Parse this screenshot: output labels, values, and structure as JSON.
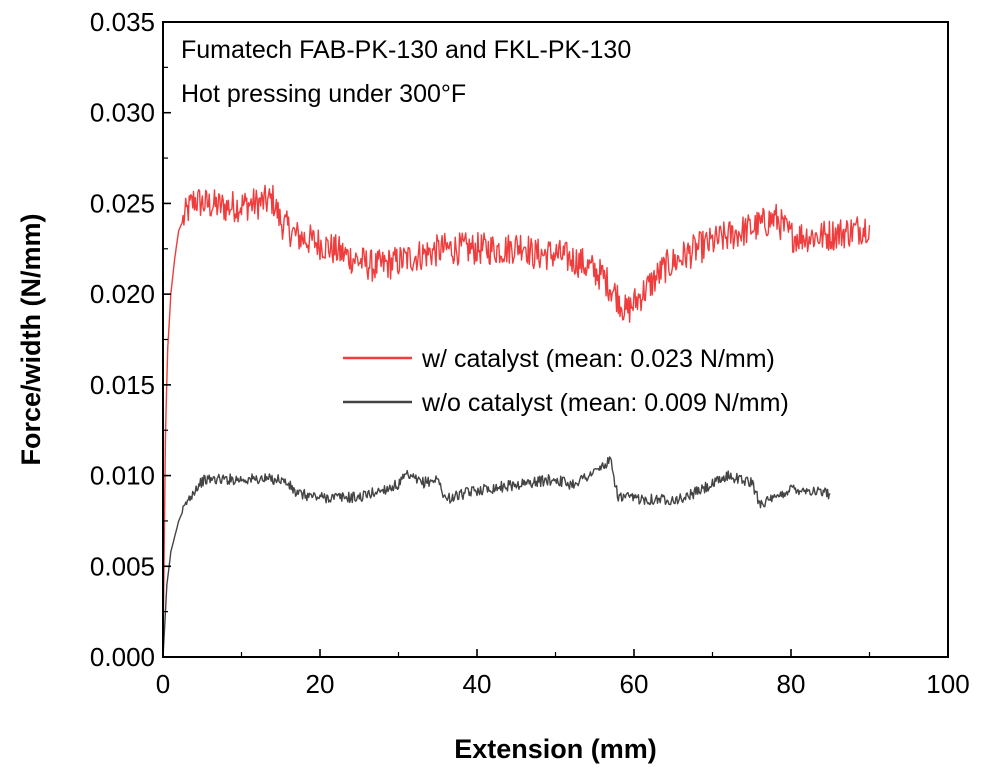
{
  "chart_data": {
    "type": "line",
    "title": "",
    "annotations": [
      "Fumatech FAB-PK-130 and FKL-PK-130",
      "Hot pressing under 300°F"
    ],
    "xlabel": "Extension (mm)",
    "ylabel": "Force/width (N/mm)",
    "xlim": [
      0,
      100
    ],
    "ylim": [
      0,
      0.035
    ],
    "x_ticks": [
      0,
      20,
      40,
      60,
      80,
      100
    ],
    "x_tick_labels": [
      "0",
      "20",
      "40",
      "60",
      "80",
      "100"
    ],
    "y_ticks": [
      0,
      0.005,
      0.01,
      0.015,
      0.02,
      0.025,
      0.03,
      0.035
    ],
    "y_tick_labels": [
      "0.000",
      "0.005",
      "0.010",
      "0.015",
      "0.020",
      "0.025",
      "0.030",
      "0.035"
    ],
    "grid": false,
    "legend_position": "center-right",
    "series": [
      {
        "name": "w/ catalyst (mean: 0.023 N/mm)",
        "color": "#f03c3c",
        "noise": 0.0009,
        "x": [
          0,
          0.3,
          0.6,
          1,
          1.5,
          2,
          3,
          4,
          5,
          8,
          12,
          14,
          15,
          17,
          20,
          24,
          27,
          30,
          33,
          36,
          40,
          44,
          46,
          47,
          50,
          53,
          56,
          58,
          59,
          60,
          62,
          64,
          68,
          72,
          76,
          78,
          80,
          84,
          88,
          90
        ],
        "y": [
          0,
          0.012,
          0.017,
          0.02,
          0.022,
          0.0235,
          0.0245,
          0.0252,
          0.025,
          0.0248,
          0.025,
          0.0252,
          0.024,
          0.0232,
          0.0228,
          0.022,
          0.0215,
          0.0218,
          0.0222,
          0.0225,
          0.0225,
          0.0225,
          0.0228,
          0.0222,
          0.0222,
          0.0218,
          0.021,
          0.0198,
          0.019,
          0.0195,
          0.0205,
          0.0215,
          0.0225,
          0.0232,
          0.0238,
          0.0242,
          0.0232,
          0.0232,
          0.0235,
          0.0238
        ]
      },
      {
        "name": "w/o catalyst (mean: 0.009 N/mm)",
        "color": "#444444",
        "noise": 0.0003,
        "x": [
          0,
          0.5,
          1,
          2,
          3,
          4,
          5,
          6,
          8,
          12,
          15,
          16,
          17,
          20,
          25,
          30,
          31,
          33,
          35,
          36,
          40,
          45,
          50,
          52,
          55,
          57,
          58,
          62,
          66,
          70,
          72,
          75,
          76,
          78,
          80,
          82,
          85
        ],
        "y": [
          0,
          0.004,
          0.0058,
          0.0075,
          0.0085,
          0.0092,
          0.0097,
          0.0098,
          0.0098,
          0.0098,
          0.0098,
          0.0095,
          0.009,
          0.0088,
          0.0088,
          0.0095,
          0.01,
          0.0096,
          0.0098,
          0.0087,
          0.0092,
          0.0095,
          0.0098,
          0.0095,
          0.0102,
          0.0108,
          0.0088,
          0.0087,
          0.0087,
          0.0095,
          0.01,
          0.0096,
          0.0085,
          0.0087,
          0.0093,
          0.0092,
          0.009
        ]
      }
    ]
  }
}
